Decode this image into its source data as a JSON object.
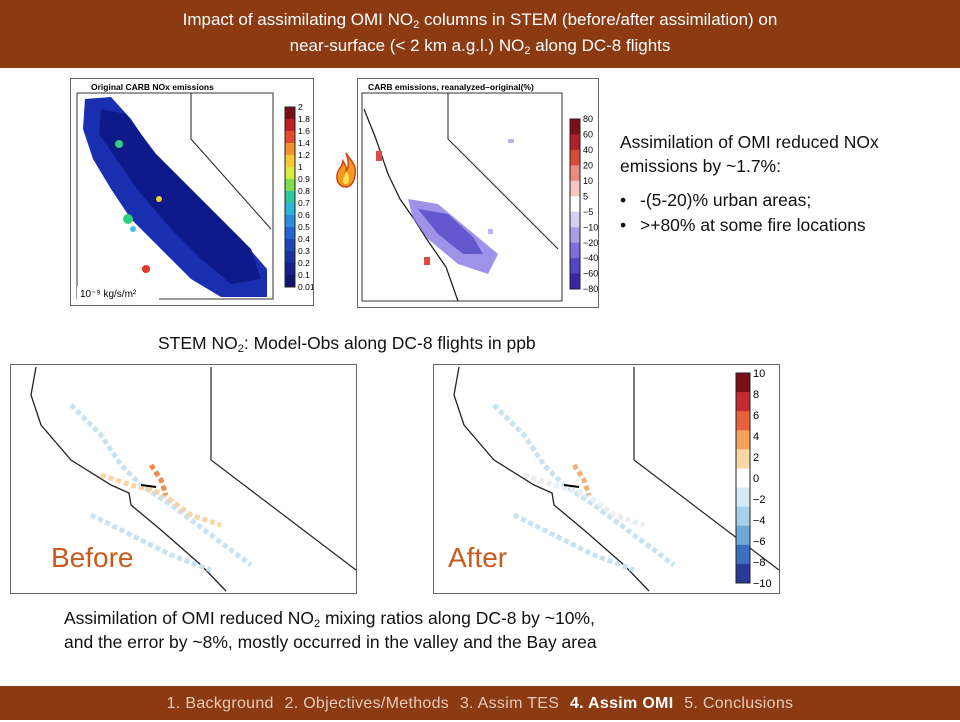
{
  "header": {
    "line1_a": "Impact of assimilating OMI NO",
    "line1_sub": "2",
    "line1_b": " columns in STEM (before/after assimilation) on",
    "line2_a": "near-surface (< 2 km a.g.l.) NO",
    "line2_sub": "2",
    "line2_b": " along DC-8 flights"
  },
  "top_maps": {
    "left_title": "Original CARB NOx emissions",
    "left_units": "10⁻⁹ kg/s/m²",
    "left_ticks": [
      "2",
      "1.8",
      "1.6",
      "1.4",
      "1.2",
      "1",
      "0.9",
      "0.8",
      "0.7",
      "0.6",
      "0.5",
      "0.4",
      "0.3",
      "0.2",
      "0.1",
      "0.01"
    ],
    "right_title": "CARB emissions, reanalyzed–original(%)",
    "right_ticks": [
      "80",
      "60",
      "40",
      "20",
      "10",
      "5",
      "−5",
      "−10",
      "−20",
      "−40",
      "−60",
      "−80"
    ],
    "fire_icon": "fire-icon"
  },
  "summary": {
    "intro": "Assimilation of OMI reduced NOx emissions by ~1.7%:",
    "bullets": [
      "-(5-20)% urban areas;",
      ">+80% at some fire locations"
    ]
  },
  "section2": {
    "title_a": "STEM NO",
    "title_sub": "2",
    "title_b": ": Model-Obs along DC-8 flights in ppb"
  },
  "bottom_maps": {
    "before_label": "Before",
    "after_label": "After",
    "ticks": [
      "10",
      "8",
      "6",
      "4",
      "2",
      "0",
      "−2",
      "−4",
      "−6",
      "−8",
      "−10"
    ]
  },
  "conclusion": {
    "line1_a": "Assimilation of OMI reduced NO",
    "line1_sub": "2",
    "line1_b": " mixing ratios along DC-8 by ~10%,",
    "line2": "and the error by ~8%, mostly occurred in the valley and the Bay area"
  },
  "footer": {
    "items": [
      "1. Background",
      "2. Objectives/Methods",
      "3. Assim TES",
      "4. Assim OMI",
      "5. Conclusions"
    ],
    "active_index": 3
  },
  "colors": {
    "banner": "#8b3a12",
    "label_orange": "#c85a1e"
  }
}
